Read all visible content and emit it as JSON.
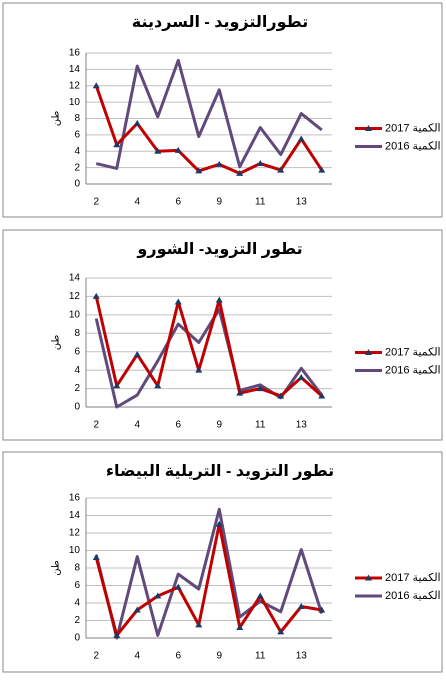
{
  "chart_data": [
    {
      "type": "line",
      "title": "تطورالتزويد - السردينة",
      "y_label": "طن",
      "categories": [
        "2",
        null,
        "4",
        null,
        "6",
        null,
        "9",
        null,
        "11",
        null,
        "13",
        null
      ],
      "series": [
        {
          "name": "الكمية 2017",
          "color": "#c00000",
          "values": [
            12,
            4.8,
            7.4,
            4,
            4.1,
            1.6,
            2.4,
            1.3,
            2.5,
            1.7,
            5.5,
            1.7
          ]
        },
        {
          "name": "الكمية 2016",
          "color": "#604a7b",
          "values": [
            2.5,
            1.9,
            14.4,
            8.2,
            15.1,
            5.8,
            11.5,
            2.1,
            6.9,
            3.6,
            8.6,
            6.6
          ]
        }
      ],
      "ylim": [
        0,
        16
      ],
      "yticks": [
        0,
        2,
        4,
        6,
        8,
        10,
        12,
        14,
        16
      ],
      "grid": true,
      "legend": "right"
    },
    {
      "type": "line",
      "title": "تطور التزويد- الشورو",
      "y_label": "طن",
      "categories": [
        "2",
        null,
        "4",
        null,
        "6",
        null,
        "9",
        null,
        "11",
        null,
        "13",
        null
      ],
      "series": [
        {
          "name": "الكمية 2017",
          "color": "#c00000",
          "values": [
            12,
            2.3,
            5.7,
            2.3,
            11.4,
            4,
            11.6,
            1.5,
            2,
            1.2,
            3.2,
            1.2
          ]
        },
        {
          "name": "الكمية 2016",
          "color": "#604a7b",
          "values": [
            9.6,
            0,
            1.3,
            5,
            9,
            7,
            10.6,
            1.8,
            2.4,
            1,
            4.2,
            1.3
          ]
        }
      ],
      "ylim": [
        0,
        14
      ],
      "yticks": [
        0,
        2,
        4,
        6,
        8,
        10,
        12,
        14
      ],
      "grid": true,
      "legend": "right"
    },
    {
      "type": "line",
      "title": "تطور التزويد - التريلية البيضاء",
      "y_label": "طن",
      "categories": [
        "2",
        null,
        "4",
        null,
        "6",
        null,
        "9",
        null,
        "11",
        null,
        "13",
        null
      ],
      "series": [
        {
          "name": "الكمية 2017",
          "color": "#c00000",
          "values": [
            9.2,
            0.3,
            3.2,
            4.8,
            5.8,
            1.5,
            13,
            1.2,
            4.8,
            0.7,
            3.6,
            3.2
          ]
        },
        {
          "name": "الكمية 2016",
          "color": "#604a7b",
          "values": [
            9.5,
            0,
            9.3,
            0.3,
            7.3,
            5.6,
            14.7,
            2.4,
            4.2,
            3,
            10.1,
            2.8
          ]
        }
      ],
      "ylim": [
        0,
        16
      ],
      "yticks": [
        0,
        2,
        4,
        6,
        8,
        10,
        12,
        14,
        16
      ],
      "grid": true,
      "legend": "right"
    }
  ]
}
